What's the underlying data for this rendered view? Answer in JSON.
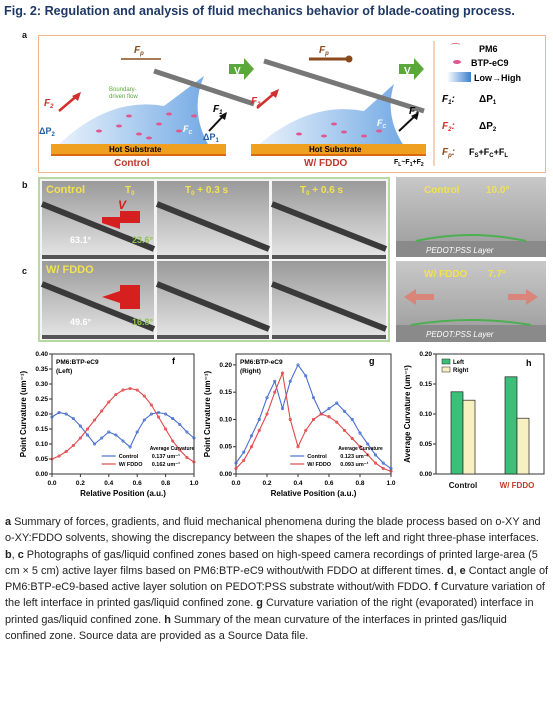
{
  "figure_title": "Fig. 2: Regulation and analysis of fluid mechanics behavior of blade-coating process.",
  "panel_a": {
    "letter": "a",
    "left_label": "Control",
    "right_label": "W/ FDDO",
    "substrate": "Hot Substrate",
    "flow_label_1": "Boundary-",
    "flow_label_2": "driven flow",
    "fp": "F",
    "fp_sub": "p",
    "f1": "F",
    "f1_sub": "1",
    "f2": "F",
    "f2_sub": "2",
    "fc": "F",
    "fc_sub": "C",
    "dp1": "ΔP",
    "dp1_sub": "1",
    "dp2": "ΔP",
    "dp2_sub": "2",
    "v": "V",
    "relation": "F",
    "relation_full": "F",
    "relation_L": "L",
    "relation_tail": "~F",
    "relation_tail2": "+F",
    "legend": {
      "pm6": "PM6",
      "btp": "BTP-eC9",
      "gradient": "Low→High",
      "f1": "F",
      "f1_sub": "1",
      "f1_val": "ΔP",
      "f1_val_sub": "1",
      "f2": "F",
      "f2_sub": "2",
      "f2_val": "ΔP",
      "f2_val_sub": "2",
      "fp": "F",
      "fp_sub": "p",
      "fp_val": "F",
      "fp_val_s": "S",
      "fp_val_plus1": "+F",
      "fp_val_c": "C",
      "fp_val_plus2": "+F",
      "fp_val_l": "L"
    },
    "colors": {
      "accent": "#c0392b",
      "fp": "#8b4a1c",
      "substrate": "#f0a020",
      "green": "#5aa83a",
      "blue": "#1f5fa8"
    }
  },
  "panel_b": {
    "letter": "b",
    "label": "Control",
    "times": [
      "T",
      "T",
      "T"
    ],
    "time_subs": [
      "0",
      "0",
      "0"
    ],
    "time_suffix": [
      "",
      " + 0.3 s",
      " + 0.6 s"
    ],
    "angle_left": "63.1°",
    "angle_right": "23.6°",
    "v": "V"
  },
  "panel_c": {
    "letter": "c",
    "label": "W/ FDDO",
    "angle_left": "49.6°",
    "angle_right": "16.8°"
  },
  "panel_d": {
    "letter": "d",
    "label": "Control",
    "angle": "10.0°",
    "layer": "PEDOT:PSS Layer"
  },
  "panel_e": {
    "letter": "e",
    "label": "W/ FDDO",
    "angle": "7.7°",
    "layer": "PEDOT:PSS Layer"
  },
  "caption": [
    {
      "b": "a",
      "t": " Summary of forces, gradients, and fluid mechanical phenomena during the blade process based on o-XY and o-XY:FDDO solvents, showing the discrepancy between the shapes of the left and right three-phase interfaces. "
    },
    {
      "b": "b",
      "t": ", "
    },
    {
      "b": "c",
      "t": " Photographs of gas/liquid confined zones based on high-speed camera recordings of printed large-area (5 cm × 5 cm) active layer films based on PM6:BTP-eC9 without/with FDDO at different times. "
    },
    {
      "b": "d",
      "t": ", "
    },
    {
      "b": "e",
      "t": " Contact angle of PM6:BTP-eC9-based active layer solution on PEDOT:PSS substrate without/with FDDO. "
    },
    {
      "b": "f",
      "t": " Curvature variation of the left interface in printed gas/liquid confined zone. "
    },
    {
      "b": "g",
      "t": " Curvature variation of the right (evaporated) interface in printed gas/liquid confined zone. "
    },
    {
      "b": "h",
      "t": " Summary of the mean curvature of the interfaces in printed gas/liquid confined zone. Source data are provided as a Source Data file."
    }
  ],
  "chart_data": [
    {
      "type": "line",
      "panel": "f",
      "title": "PM6:BTP-eC9",
      "subtitle": "(Left)",
      "xlabel": "Relative Position (a.u.)",
      "ylabel": "Point Curvature (um⁻¹)",
      "xlim": [
        0.0,
        1.0
      ],
      "ylim": [
        0.0,
        0.4
      ],
      "xticks": [
        "0.0",
        "0.2",
        "0.4",
        "0.6",
        "0.8",
        "1.0"
      ],
      "yticks": [
        "0.00",
        "0.05",
        "0.10",
        "0.15",
        "0.20",
        "0.25",
        "0.30",
        "0.35",
        "0.40"
      ],
      "legend_title": "Average Curvature",
      "series": [
        {
          "name": "Control",
          "avg": "0.137 um⁻¹",
          "color": "#4a6fd0",
          "x": [
            0,
            0.05,
            0.1,
            0.15,
            0.2,
            0.25,
            0.3,
            0.35,
            0.4,
            0.45,
            0.5,
            0.55,
            0.6,
            0.65,
            0.7,
            0.75,
            0.8,
            0.85,
            0.9,
            0.95,
            1.0
          ],
          "y": [
            0.19,
            0.205,
            0.2,
            0.185,
            0.16,
            0.13,
            0.1,
            0.12,
            0.14,
            0.13,
            0.11,
            0.09,
            0.14,
            0.18,
            0.2,
            0.205,
            0.2,
            0.185,
            0.165,
            0.14,
            0.12
          ]
        },
        {
          "name": "W/ FDDO",
          "avg": "0.162 um⁻¹",
          "color": "#e0484a",
          "x": [
            0,
            0.05,
            0.1,
            0.15,
            0.2,
            0.25,
            0.3,
            0.35,
            0.4,
            0.45,
            0.5,
            0.55,
            0.6,
            0.65,
            0.7,
            0.75,
            0.8,
            0.85,
            0.9,
            0.95,
            1.0
          ],
          "y": [
            0.05,
            0.06,
            0.075,
            0.095,
            0.12,
            0.15,
            0.18,
            0.21,
            0.24,
            0.265,
            0.28,
            0.285,
            0.28,
            0.26,
            0.23,
            0.19,
            0.15,
            0.11,
            0.08,
            0.055,
            0.04
          ]
        }
      ]
    },
    {
      "type": "line",
      "panel": "g",
      "title": "PM6:BTP-eC9",
      "subtitle": "(Right)",
      "xlabel": "Relative Position (a.u.)",
      "ylabel": "Point Curvature (um⁻¹)",
      "xlim": [
        0.0,
        1.0
      ],
      "ylim": [
        0.0,
        0.22
      ],
      "xticks": [
        "0.0",
        "0.2",
        "0.4",
        "0.6",
        "0.8",
        "1.0"
      ],
      "yticks": [
        "0.00",
        "0.05",
        "0.10",
        "0.15",
        "0.20"
      ],
      "legend_title": "Average Curvature",
      "series": [
        {
          "name": "Control",
          "avg": "0.123 um⁻¹",
          "color": "#4a6fd0",
          "x": [
            0,
            0.05,
            0.1,
            0.15,
            0.2,
            0.25,
            0.3,
            0.35,
            0.4,
            0.45,
            0.5,
            0.55,
            0.6,
            0.65,
            0.7,
            0.75,
            0.8,
            0.85,
            0.9,
            0.95,
            1.0
          ],
          "y": [
            0.02,
            0.04,
            0.07,
            0.1,
            0.14,
            0.17,
            0.12,
            0.17,
            0.2,
            0.18,
            0.14,
            0.11,
            0.12,
            0.13,
            0.115,
            0.1,
            0.075,
            0.055,
            0.035,
            0.02,
            0.01
          ]
        },
        {
          "name": "W/ FDDO",
          "avg": "0.093 um⁻¹",
          "color": "#e0484a",
          "x": [
            0,
            0.05,
            0.1,
            0.15,
            0.2,
            0.25,
            0.3,
            0.35,
            0.4,
            0.45,
            0.5,
            0.55,
            0.6,
            0.65,
            0.7,
            0.75,
            0.8,
            0.85,
            0.9,
            0.95,
            1.0
          ],
          "y": [
            0.01,
            0.025,
            0.05,
            0.08,
            0.11,
            0.15,
            0.185,
            0.1,
            0.05,
            0.08,
            0.1,
            0.11,
            0.105,
            0.095,
            0.08,
            0.065,
            0.05,
            0.035,
            0.02,
            0.01,
            0.005
          ]
        }
      ]
    },
    {
      "type": "bar",
      "panel": "h",
      "ylabel": "Average Curvature (um⁻¹)",
      "categories": [
        "Control",
        "W/ FDDO"
      ],
      "ylim": [
        0.0,
        0.2
      ],
      "yticks": [
        "0.00",
        "0.05",
        "0.10",
        "0.15",
        "0.20"
      ],
      "series": [
        {
          "name": "Left",
          "color": "#3cbf78",
          "values": [
            0.137,
            0.162
          ]
        },
        {
          "name": "Right",
          "color": "#f7f0c0",
          "values": [
            0.123,
            0.093
          ]
        }
      ]
    }
  ]
}
